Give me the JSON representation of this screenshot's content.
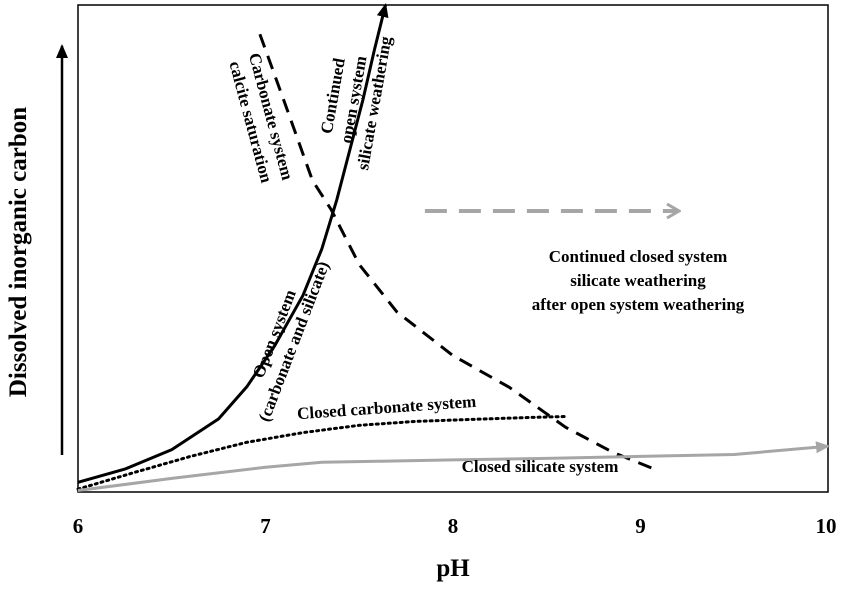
{
  "chart_data": {
    "type": "line",
    "title": "",
    "xlabel": "pH",
    "ylabel": "Dissolved inorganic carbon",
    "xlim": [
      6,
      10
    ],
    "xticks": [
      "6",
      "7",
      "8",
      "9",
      "10"
    ],
    "ylim": [
      0,
      100
    ],
    "ylabel_arrow": true,
    "grid": false,
    "series": [
      {
        "key": "open",
        "color": "#000000",
        "dash": "solid",
        "x": [
          6.0,
          6.25,
          6.5,
          6.75,
          6.9,
          7.05,
          7.2,
          7.3,
          7.38,
          7.45,
          7.52,
          7.58,
          7.64
        ],
        "y": [
          2.0,
          4.7,
          8.7,
          15.0,
          21.6,
          30.1,
          40.4,
          49.9,
          60.0,
          70.3,
          80.6,
          90.7,
          100.0
        ]
      },
      {
        "key": "calcite",
        "color": "#000000",
        "dash": "dashed",
        "x": [
          6.97,
          7.1,
          7.25,
          7.35,
          7.5,
          7.7,
          8.0,
          8.3,
          8.6,
          8.85,
          9.1
        ],
        "y": [
          94.0,
          80.2,
          64.0,
          58.0,
          46.7,
          37.0,
          28.0,
          21.5,
          13.3,
          8.2,
          4.3
        ]
      },
      {
        "key": "closed_carbonate",
        "color": "#000000",
        "dash": "dotted",
        "x": [
          6.0,
          6.3,
          6.6,
          6.9,
          7.2,
          7.5,
          7.8,
          8.1,
          8.4,
          8.6
        ],
        "y": [
          0.6,
          4.0,
          7.3,
          10.2,
          12.2,
          13.7,
          14.5,
          14.9,
          15.3,
          15.5
        ]
      },
      {
        "key": "closed_silicate",
        "color": "#a6a6a6",
        "dash": "solid",
        "x": [
          6.0,
          6.5,
          7.0,
          7.3,
          7.6,
          8.0,
          8.5,
          9.0,
          9.5,
          10.0
        ],
        "y": [
          0.3,
          2.8,
          5.1,
          6.1,
          6.3,
          6.6,
          6.9,
          7.3,
          7.7,
          9.4
        ],
        "arrow_end": true
      }
    ],
    "gray_dashed_arrow": {
      "color": "#a6a6a6",
      "x": [
        7.85,
        9.2
      ],
      "y": [
        57.7,
        57.7
      ]
    },
    "annotations": {
      "calcite_line1": "Carbonate system",
      "calcite_line2": "calcite saturation",
      "continued_line1": "Continued",
      "continued_line2": "open system",
      "continued_line3": "silicate weathering",
      "open_line1": "Open system",
      "open_line2": "(carbonate and silicate)",
      "closed_carbonate_label": "Closed carbonate system",
      "closed_silicate_label": "Closed silicate system",
      "right_line1": "Continued closed system",
      "right_line2": "silicate weathering",
      "right_line3": "after open system weathering"
    }
  }
}
